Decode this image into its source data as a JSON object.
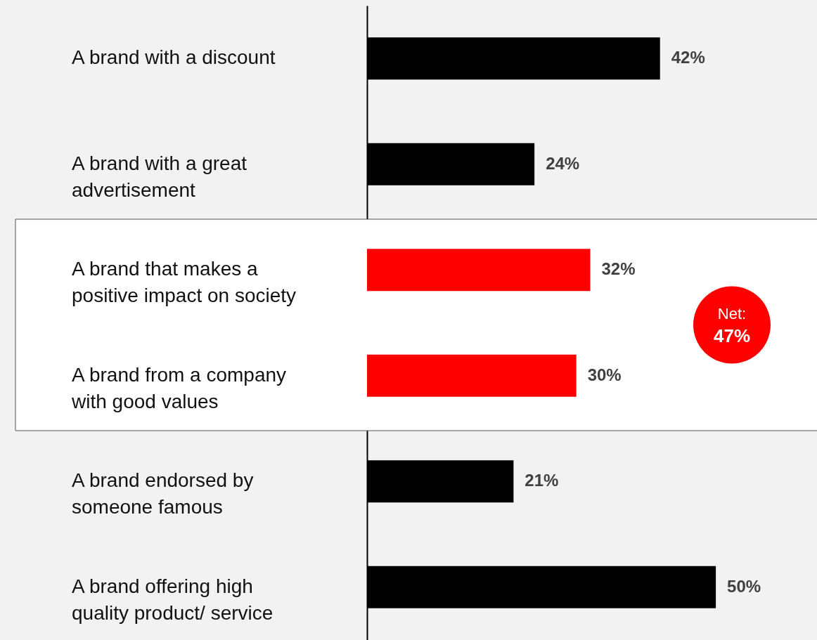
{
  "chart_data": {
    "type": "bar",
    "orientation": "horizontal",
    "categories": [
      "A brand with a discount",
      "A brand with a great advertisement",
      "A brand that makes a positive impact on society",
      "A brand from a company with good values",
      "A brand endorsed by someone famous",
      "A brand offering high quality product/ service"
    ],
    "values": [
      42,
      24,
      32,
      30,
      21,
      50
    ],
    "colors": [
      "#000000",
      "#000000",
      "#ff0000",
      "#ff0000",
      "#000000",
      "#000000"
    ],
    "value_labels": [
      "42%",
      "24%",
      "32%",
      "30%",
      "21%",
      "50%"
    ],
    "bands": [
      {
        "axis": "y",
        "from": "A brand that makes a positive impact on society",
        "to": "A brand from a company with good values",
        "color": "#ffffff"
      }
    ],
    "annotations": [
      "Net: 47%"
    ],
    "grid": false
  }
}
